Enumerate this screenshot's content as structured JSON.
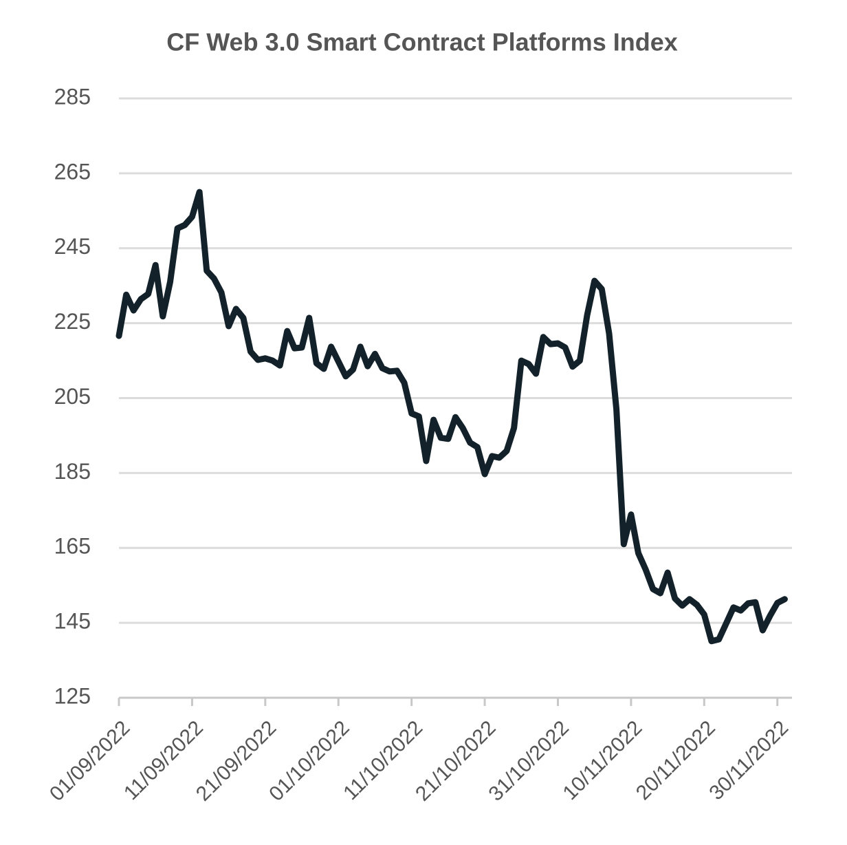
{
  "chart_data": {
    "type": "line",
    "title": "CF Web 3.0 Smart Contract Platforms Index",
    "x": [
      "01/09/2022",
      "02/09/2022",
      "03/09/2022",
      "04/09/2022",
      "05/09/2022",
      "06/09/2022",
      "07/09/2022",
      "08/09/2022",
      "09/09/2022",
      "10/09/2022",
      "11/09/2022",
      "12/09/2022",
      "13/09/2022",
      "14/09/2022",
      "15/09/2022",
      "16/09/2022",
      "17/09/2022",
      "18/09/2022",
      "19/09/2022",
      "20/09/2022",
      "21/09/2022",
      "22/09/2022",
      "23/09/2022",
      "24/09/2022",
      "25/09/2022",
      "26/09/2022",
      "27/09/2022",
      "28/09/2022",
      "29/09/2022",
      "30/09/2022",
      "01/10/2022",
      "02/10/2022",
      "03/10/2022",
      "04/10/2022",
      "05/10/2022",
      "06/10/2022",
      "07/10/2022",
      "08/10/2022",
      "09/10/2022",
      "10/10/2022",
      "11/10/2022",
      "12/10/2022",
      "13/10/2022",
      "14/10/2022",
      "15/10/2022",
      "16/10/2022",
      "17/10/2022",
      "18/10/2022",
      "19/10/2022",
      "20/10/2022",
      "21/10/2022",
      "22/10/2022",
      "23/10/2022",
      "24/10/2022",
      "25/10/2022",
      "26/10/2022",
      "27/10/2022",
      "28/10/2022",
      "29/10/2022",
      "30/10/2022",
      "31/10/2022",
      "01/11/2022",
      "02/11/2022",
      "03/11/2022",
      "04/11/2022",
      "05/11/2022",
      "06/11/2022",
      "07/11/2022",
      "08/11/2022",
      "09/11/2022",
      "10/11/2022",
      "11/11/2022",
      "12/11/2022",
      "13/11/2022",
      "14/11/2022",
      "15/11/2022",
      "16/11/2022",
      "17/11/2022",
      "18/11/2022",
      "19/11/2022",
      "20/11/2022",
      "21/11/2022",
      "22/11/2022",
      "23/11/2022",
      "24/11/2022",
      "25/11/2022",
      "26/11/2022",
      "27/11/2022",
      "28/11/2022",
      "29/11/2022",
      "30/11/2022",
      "01/12/2022"
    ],
    "values": [
      221.6,
      232.6,
      228.4,
      231.4,
      232.8,
      240.5,
      226.8,
      236,
      250.3,
      251.2,
      253.4,
      260,
      239,
      236.9,
      233.2,
      224.2,
      228.8,
      226.4,
      217.4,
      215.2,
      215.6,
      215,
      213.7,
      222.9,
      218.3,
      218.5,
      226.4,
      214.3,
      212.8,
      218.7,
      214.8,
      210.8,
      212.6,
      218.7,
      213.5,
      216.8,
      213,
      212.1,
      212.3,
      209.1,
      200.9,
      200.1,
      188.2,
      199.2,
      194.4,
      194.1,
      199.9,
      197,
      193.1,
      191.9,
      184.7,
      189.5,
      189.1,
      190.9,
      197,
      215,
      214.1,
      211.5,
      221.3,
      219.4,
      219.6,
      218.5,
      213.4,
      215,
      227.1,
      236.3,
      234.1,
      222.2,
      202,
      166,
      173.9,
      163.6,
      159.2,
      154,
      152.9,
      158.4,
      151.5,
      149.6,
      151.3,
      149.8,
      147.2,
      140.1,
      140.6,
      144.8,
      149.1,
      148.3,
      150.2,
      150.5,
      143,
      146.9,
      150.3,
      151.3
    ],
    "color": "#13222a",
    "xlim": [
      "01/09/2022",
      "02/12/2022"
    ],
    "xticks": [
      "01/09/2022",
      "11/09/2022",
      "21/09/2022",
      "01/10/2022",
      "11/10/2022",
      "21/10/2022",
      "31/10/2022",
      "10/11/2022",
      "20/11/2022",
      "30/11/2022"
    ],
    "ylim": [
      125,
      285
    ],
    "yticks": [
      125,
      145,
      165,
      185,
      205,
      225,
      245,
      265,
      285
    ],
    "grid": true
  }
}
